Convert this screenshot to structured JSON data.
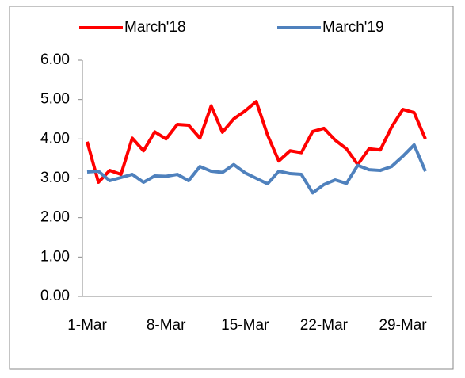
{
  "chart_data": {
    "type": "line",
    "categories": [
      "1-Mar",
      null,
      null,
      null,
      null,
      null,
      null,
      "8-Mar",
      null,
      null,
      null,
      null,
      null,
      null,
      "15-Mar",
      null,
      null,
      null,
      null,
      null,
      null,
      "22-Mar",
      null,
      null,
      null,
      null,
      null,
      null,
      "29-Mar",
      null,
      null
    ],
    "series": [
      {
        "name": "March'18",
        "color": "#ff0000",
        "values": [
          3.93,
          2.9,
          3.2,
          3.1,
          4.02,
          3.7,
          4.18,
          4.0,
          4.37,
          4.35,
          4.02,
          4.84,
          4.17,
          4.51,
          4.71,
          4.95,
          4.1,
          3.44,
          3.7,
          3.65,
          4.19,
          4.27,
          3.97,
          3.75,
          3.35,
          3.75,
          3.72,
          4.3,
          4.75,
          4.67,
          4.0
        ]
      },
      {
        "name": "March'19",
        "color": "#4f81bd",
        "values": [
          3.16,
          3.18,
          2.94,
          3.02,
          3.1,
          2.9,
          3.06,
          3.05,
          3.1,
          2.94,
          3.3,
          3.18,
          3.15,
          3.35,
          3.14,
          3.0,
          2.86,
          3.18,
          3.12,
          3.1,
          2.63,
          2.84,
          2.96,
          2.87,
          3.33,
          3.22,
          3.2,
          3.3,
          3.56,
          3.85,
          3.18
        ]
      }
    ],
    "ylim": [
      0,
      6
    ],
    "yticks": [
      {
        "value": 0,
        "label": "0.00"
      },
      {
        "value": 1,
        "label": "1.00"
      },
      {
        "value": 2,
        "label": "2.00"
      },
      {
        "value": 3,
        "label": "3.00"
      },
      {
        "value": 4,
        "label": "4.00"
      },
      {
        "value": 5,
        "label": "5.00"
      },
      {
        "value": 6,
        "label": "6.00"
      }
    ],
    "legend": "top"
  }
}
